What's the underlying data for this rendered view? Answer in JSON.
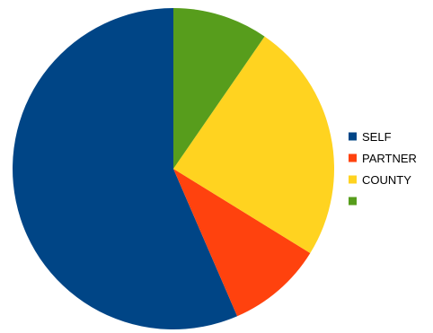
{
  "chart_data": {
    "type": "pie",
    "start_angle_deg": 0,
    "direction": "counterclockwise",
    "legend_position": "right",
    "slices": [
      {
        "label": "SELF",
        "value": 56.5,
        "color": "#004586"
      },
      {
        "label": "PARTNER",
        "value": 9.7,
        "color": "#ff420e"
      },
      {
        "label": "COUNTY",
        "value": 24.2,
        "color": "#ffd320"
      },
      {
        "label": "",
        "value": 9.6,
        "color": "#579d1c"
      }
    ]
  }
}
